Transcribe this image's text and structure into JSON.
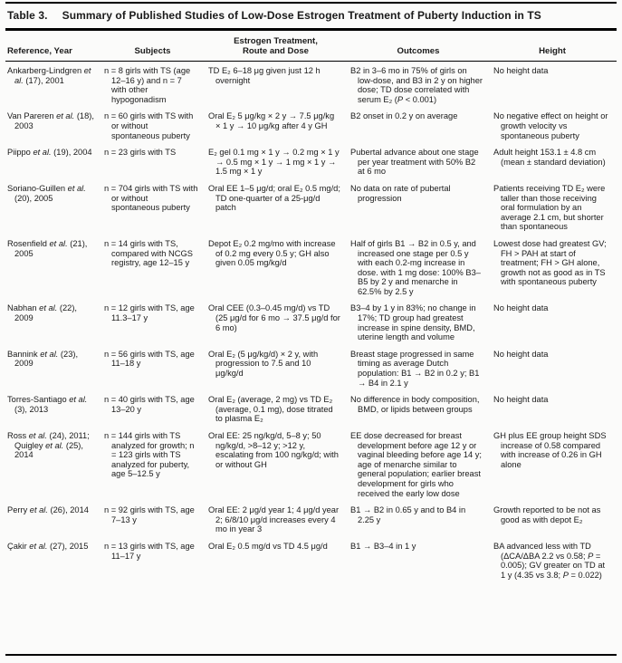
{
  "table": {
    "title_label": "Table 3.",
    "title": "Summary of Published Studies of Low-Dose Estrogen Treatment of Puberty Induction in TS",
    "columns": [
      "Reference, Year",
      "Subjects",
      "Estrogen Treatment,\nRoute and Dose",
      "Outcomes",
      "Height"
    ],
    "rows": [
      {
        "reference": "Ankarberg-Lindgren et al. (17), 2001",
        "subjects": "n = 8 girls with TS (age 12–16 y) and n = 7 with other hypogonadism",
        "treatment": "TD E₂ 6–18 μg given just 12 h overnight",
        "outcomes": "B2 in 3–6 mo in 75% of girls on low-dose, and B3 in 2 y on higher dose; TD dose correlated with serum E₂ (P < 0.001)",
        "height": "No height data"
      },
      {
        "reference": "Van Pareren et al. (18), 2003",
        "subjects": "n = 60 girls with TS with or without spontaneous puberty",
        "treatment": "Oral E₂ 5 μg/kg × 2 y → 7.5 μg/kg × 1 y → 10 μg/kg after 4 y GH",
        "outcomes": "B2 onset in 0.2 y on average",
        "height": "No negative effect on height or growth velocity vs spontaneous puberty"
      },
      {
        "reference": "Piippo et al. (19), 2004",
        "subjects": "n = 23 girls with TS",
        "treatment": "E₂ gel 0.1 mg × 1 y → 0.2 mg × 1 y → 0.5 mg × 1 y → 1 mg × 1 y → 1.5 mg × 1 y",
        "outcomes": "Pubertal advance about one stage per year treatment with 50% B2 at 6 mo",
        "height": "Adult height 153.1 ± 4.8 cm (mean ± standard deviation)"
      },
      {
        "reference": "Soriano-Guillen et al. (20), 2005",
        "subjects": "n = 704 girls with TS with or without spontaneous puberty",
        "treatment": "Oral EE 1–5 μg/d; oral E₂ 0.5 mg/d; TD one-quarter of a 25-μg/d patch",
        "outcomes": "No data on rate of pubertal progression",
        "height": "Patients receiving TD E₂ were taller than those receiving oral formulation by an average 2.1 cm, but shorter than spontaneous"
      },
      {
        "reference": "Rosenfield et al. (21), 2005",
        "subjects": "n = 14 girls with TS, compared with NCGS registry, age 12–15 y",
        "treatment": "Depot E₂ 0.2 mg/mo with increase of 0.2 mg every 0.5 y; GH also given 0.05 mg/kg/d",
        "outcomes": "Half of girls B1 → B2 in 0.5 y, and increased one stage per 0.5 y with each 0.2-mg increase in dose. with 1 mg dose: 100% B3–B5 by 2 y and menarche in 62.5% by 2.5 y",
        "height": "Lowest dose had greatest GV; FH > PAH at start of treatment; FH > GH alone, growth not as good as in TS with spontaneous puberty"
      },
      {
        "reference": "Nabhan et al. (22), 2009",
        "subjects": "n = 12 girls with TS, age 11.3–17 y",
        "treatment": "Oral CEE (0.3–0.45 mg/d) vs TD (25 μg/d for 6 mo → 37.5 μg/d for 6 mo)",
        "outcomes": "B3–4 by 1 y in 83%; no change in 17%; TD group had greatest increase in spine density, BMD, uterine length and volume",
        "height": "No height data"
      },
      {
        "reference": "Bannink et al. (23), 2009",
        "subjects": "n = 56 girls with TS, age 11–18 y",
        "treatment": "Oral E₂ (5 μg/kg/d) × 2 y, with progression to 7.5 and 10 μg/kg/d",
        "outcomes": "Breast stage progressed in same timing as average Dutch population: B1 → B2 in 0.2 y; B1 → B4 in 2.1 y",
        "height": "No height data"
      },
      {
        "reference": "Torres-Santiago et al. (3), 2013",
        "subjects": "n = 40 girls with TS, age 13–20 y",
        "treatment": "Oral E₂ (average, 2 mg) vs TD E₂ (average, 0.1 mg), dose titrated to plasma E₂",
        "outcomes": "No difference in body composition, BMD, or lipids between groups",
        "height": "No height data"
      },
      {
        "reference": "Ross et al. (24), 2011; Quigley et al. (25), 2014",
        "subjects": "n = 144 girls with TS analyzed for growth; n = 123 girls with TS analyzed for puberty, age 5–12.5 y",
        "treatment": "Oral EE: 25 ng/kg/d, 5–8 y; 50 ng/kg/d, >8–12 y; >12 y, escalating from 100 ng/kg/d; with or without GH",
        "outcomes": "EE dose decreased for breast development before age 12 y or vaginal bleeding before age 14 y; age of menarche similar to general population; earlier breast development for girls who received the early low dose",
        "height": "GH plus EE group height SDS increase of 0.58 compared with increase of 0.26 in GH alone"
      },
      {
        "reference": "Perry et al. (26), 2014",
        "subjects": "n = 92 girls with TS, age 7–13 y",
        "treatment": "Oral EE: 2 μg/d year 1; 4 μg/d year 2; 6/8/10 μg/d increases every 4 mo in year 3",
        "outcomes": "B1 → B2 in 0.65 y and to B4 in 2.25 y",
        "height": "Growth reported to be not as good as with depot E₂"
      },
      {
        "reference": "Çakir et al. (27), 2015",
        "subjects": "n = 13 girls with TS, age 11–17 y",
        "treatment": "Oral E₂ 0.5 mg/d vs TD 4.5 μg/d",
        "outcomes": "B1 → B3–4 in 1 y",
        "height": "BA advanced less with TD (ΔCA/ΔBA 2.2 vs 0.58; P = 0.005); GV greater on TD at 1 y (4.35 vs 3.8; P = 0.022)"
      }
    ]
  }
}
